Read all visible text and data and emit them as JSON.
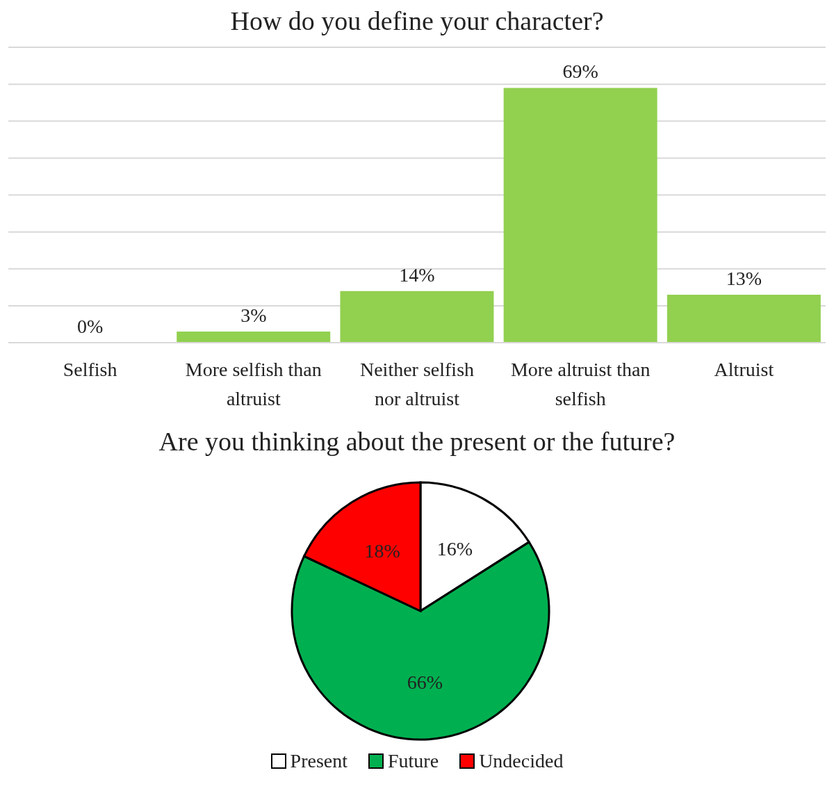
{
  "chart_data": [
    {
      "type": "bar",
      "title": "How do you define your character?",
      "categories": [
        "Selfish",
        "More selfish than altruist",
        "Neither selfish nor altruist",
        "More altruist than selfish",
        "Altruist"
      ],
      "values": [
        0,
        3,
        14,
        69,
        13
      ],
      "value_labels": [
        "0%",
        "3%",
        "14%",
        "69%",
        "13%"
      ],
      "color": "#92d050",
      "ylim": [
        0,
        80
      ],
      "yticks": [
        {
          "value": 0,
          "label": null
        },
        {
          "value": 10,
          "label": null
        },
        {
          "value": 20,
          "label": null
        },
        {
          "value": 30,
          "label": null
        },
        {
          "value": 40,
          "label": null
        },
        {
          "value": 50,
          "label": null
        },
        {
          "value": 60,
          "label": null
        },
        {
          "value": 70,
          "label": null
        },
        {
          "value": 80,
          "label": null
        }
      ],
      "grid": "y",
      "tick_labels": "x"
    },
    {
      "type": "pie",
      "title": "Are you thinking about the present or the future?",
      "categories": [
        "Present",
        "Future",
        "Undecided"
      ],
      "values": [
        16,
        66,
        18
      ],
      "value_labels": [
        "16%",
        "66%",
        "18%"
      ],
      "colors": [
        "#ffffff",
        "#00b050",
        "#ff0000"
      ],
      "legend": "bottom"
    }
  ]
}
